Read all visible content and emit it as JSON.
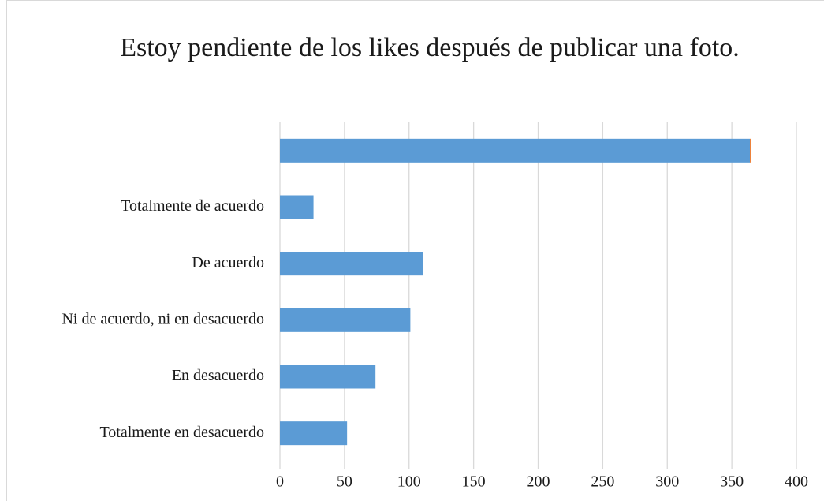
{
  "chart_data": {
    "type": "bar",
    "orientation": "horizontal",
    "stacked": true,
    "title": "Estoy pendiente de los likes después de publicar una foto.",
    "categories": [
      null,
      "Totalmente de acuerdo",
      "De acuerdo",
      "Ni de acuerdo, ni en desacuerdo",
      "En desacuerdo",
      "Totalmente en desacuerdo"
    ],
    "series": [
      {
        "color": "#5b9bd5",
        "values": [
          364,
          26,
          111,
          101,
          74,
          52
        ]
      },
      {
        "color": "#ed7d31",
        "values": [
          1,
          null,
          null,
          null,
          null,
          null
        ]
      }
    ],
    "xlim": [
      0,
      400
    ],
    "xticks": [
      0,
      50,
      100,
      150,
      200,
      250,
      300,
      350,
      400
    ],
    "grid": true
  }
}
